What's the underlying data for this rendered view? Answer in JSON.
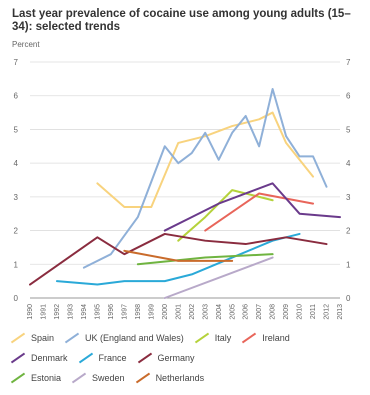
{
  "chart_data": {
    "type": "line",
    "title": "Last year prevalence of cocaine use among young adults (15–34): selected trends",
    "ylabel": "Percent",
    "ylim": [
      0,
      7
    ],
    "yticks": [
      0,
      1,
      2,
      3,
      4,
      5,
      6,
      7
    ],
    "xlim": [
      1990,
      2013
    ],
    "categories": [
      "1990",
      "1991",
      "1992",
      "1993",
      "1994",
      "1995",
      "1996",
      "1997",
      "1998",
      "1999",
      "2000",
      "2001",
      "2002",
      "2003",
      "2004",
      "2005",
      "2006",
      "2007",
      "2008",
      "2009",
      "2010",
      "2011",
      "2012",
      "2013"
    ],
    "grid": true,
    "legend_position": "bottom",
    "series": [
      {
        "name": "Spain",
        "color": "#f8d37e",
        "x": [
          1995,
          1997,
          1999,
          2001,
          2003,
          2005,
          2007,
          2008,
          2009,
          2011
        ],
        "y": [
          3.4,
          2.7,
          2.7,
          4.6,
          4.8,
          5.1,
          5.3,
          5.5,
          4.6,
          3.6
        ]
      },
      {
        "name": "UK (England and Wales)",
        "color": "#8fb0d8",
        "x": [
          1994,
          1996,
          1998,
          2000,
          2001,
          2002,
          2003,
          2004,
          2005,
          2006,
          2007,
          2008,
          2009,
          2010,
          2011,
          2012
        ],
        "y": [
          0.9,
          1.3,
          2.4,
          4.5,
          4.0,
          4.3,
          4.9,
          4.1,
          4.9,
          5.4,
          4.5,
          6.2,
          4.8,
          4.2,
          4.2,
          3.3
        ]
      },
      {
        "name": "Italy",
        "color": "#b5d23b",
        "x": [
          2001,
          2003,
          2005,
          2006,
          2008
        ],
        "y": [
          1.7,
          2.4,
          3.2,
          3.1,
          2.9
        ]
      },
      {
        "name": "Ireland",
        "color": "#e8655a",
        "x": [
          2003,
          2007,
          2011
        ],
        "y": [
          2.0,
          3.1,
          2.8
        ]
      },
      {
        "name": "Denmark",
        "color": "#6a3a8b",
        "x": [
          2000,
          2002,
          2004,
          2006,
          2008,
          2010,
          2013
        ],
        "y": [
          2.0,
          2.4,
          2.8,
          3.1,
          3.4,
          2.5,
          2.4
        ]
      },
      {
        "name": "France",
        "color": "#2aa9d8",
        "x": [
          1992,
          1995,
          1997,
          1998,
          2000,
          2002,
          2005,
          2008,
          2010
        ],
        "y": [
          0.5,
          0.4,
          0.5,
          0.5,
          0.5,
          0.7,
          1.2,
          1.7,
          1.9
        ]
      },
      {
        "name": "Germany",
        "color": "#8a2c3f",
        "x": [
          1990,
          1995,
          1997,
          2000,
          2003,
          2006,
          2009,
          2012
        ],
        "y": [
          0.4,
          1.8,
          1.3,
          1.9,
          1.7,
          1.6,
          1.8,
          1.6
        ]
      },
      {
        "name": "Estonia",
        "color": "#6fb440",
        "x": [
          1998,
          2003,
          2008
        ],
        "y": [
          1.0,
          1.2,
          1.3
        ]
      },
      {
        "name": "Sweden",
        "color": "#b8a9c9",
        "x": [
          2000,
          2004,
          2008
        ],
        "y": [
          0.0,
          0.6,
          1.2
        ]
      },
      {
        "name": "Netherlands",
        "color": "#c96b2b",
        "x": [
          1997,
          2001,
          2005
        ],
        "y": [
          1.4,
          1.1,
          1.1
        ]
      }
    ]
  }
}
